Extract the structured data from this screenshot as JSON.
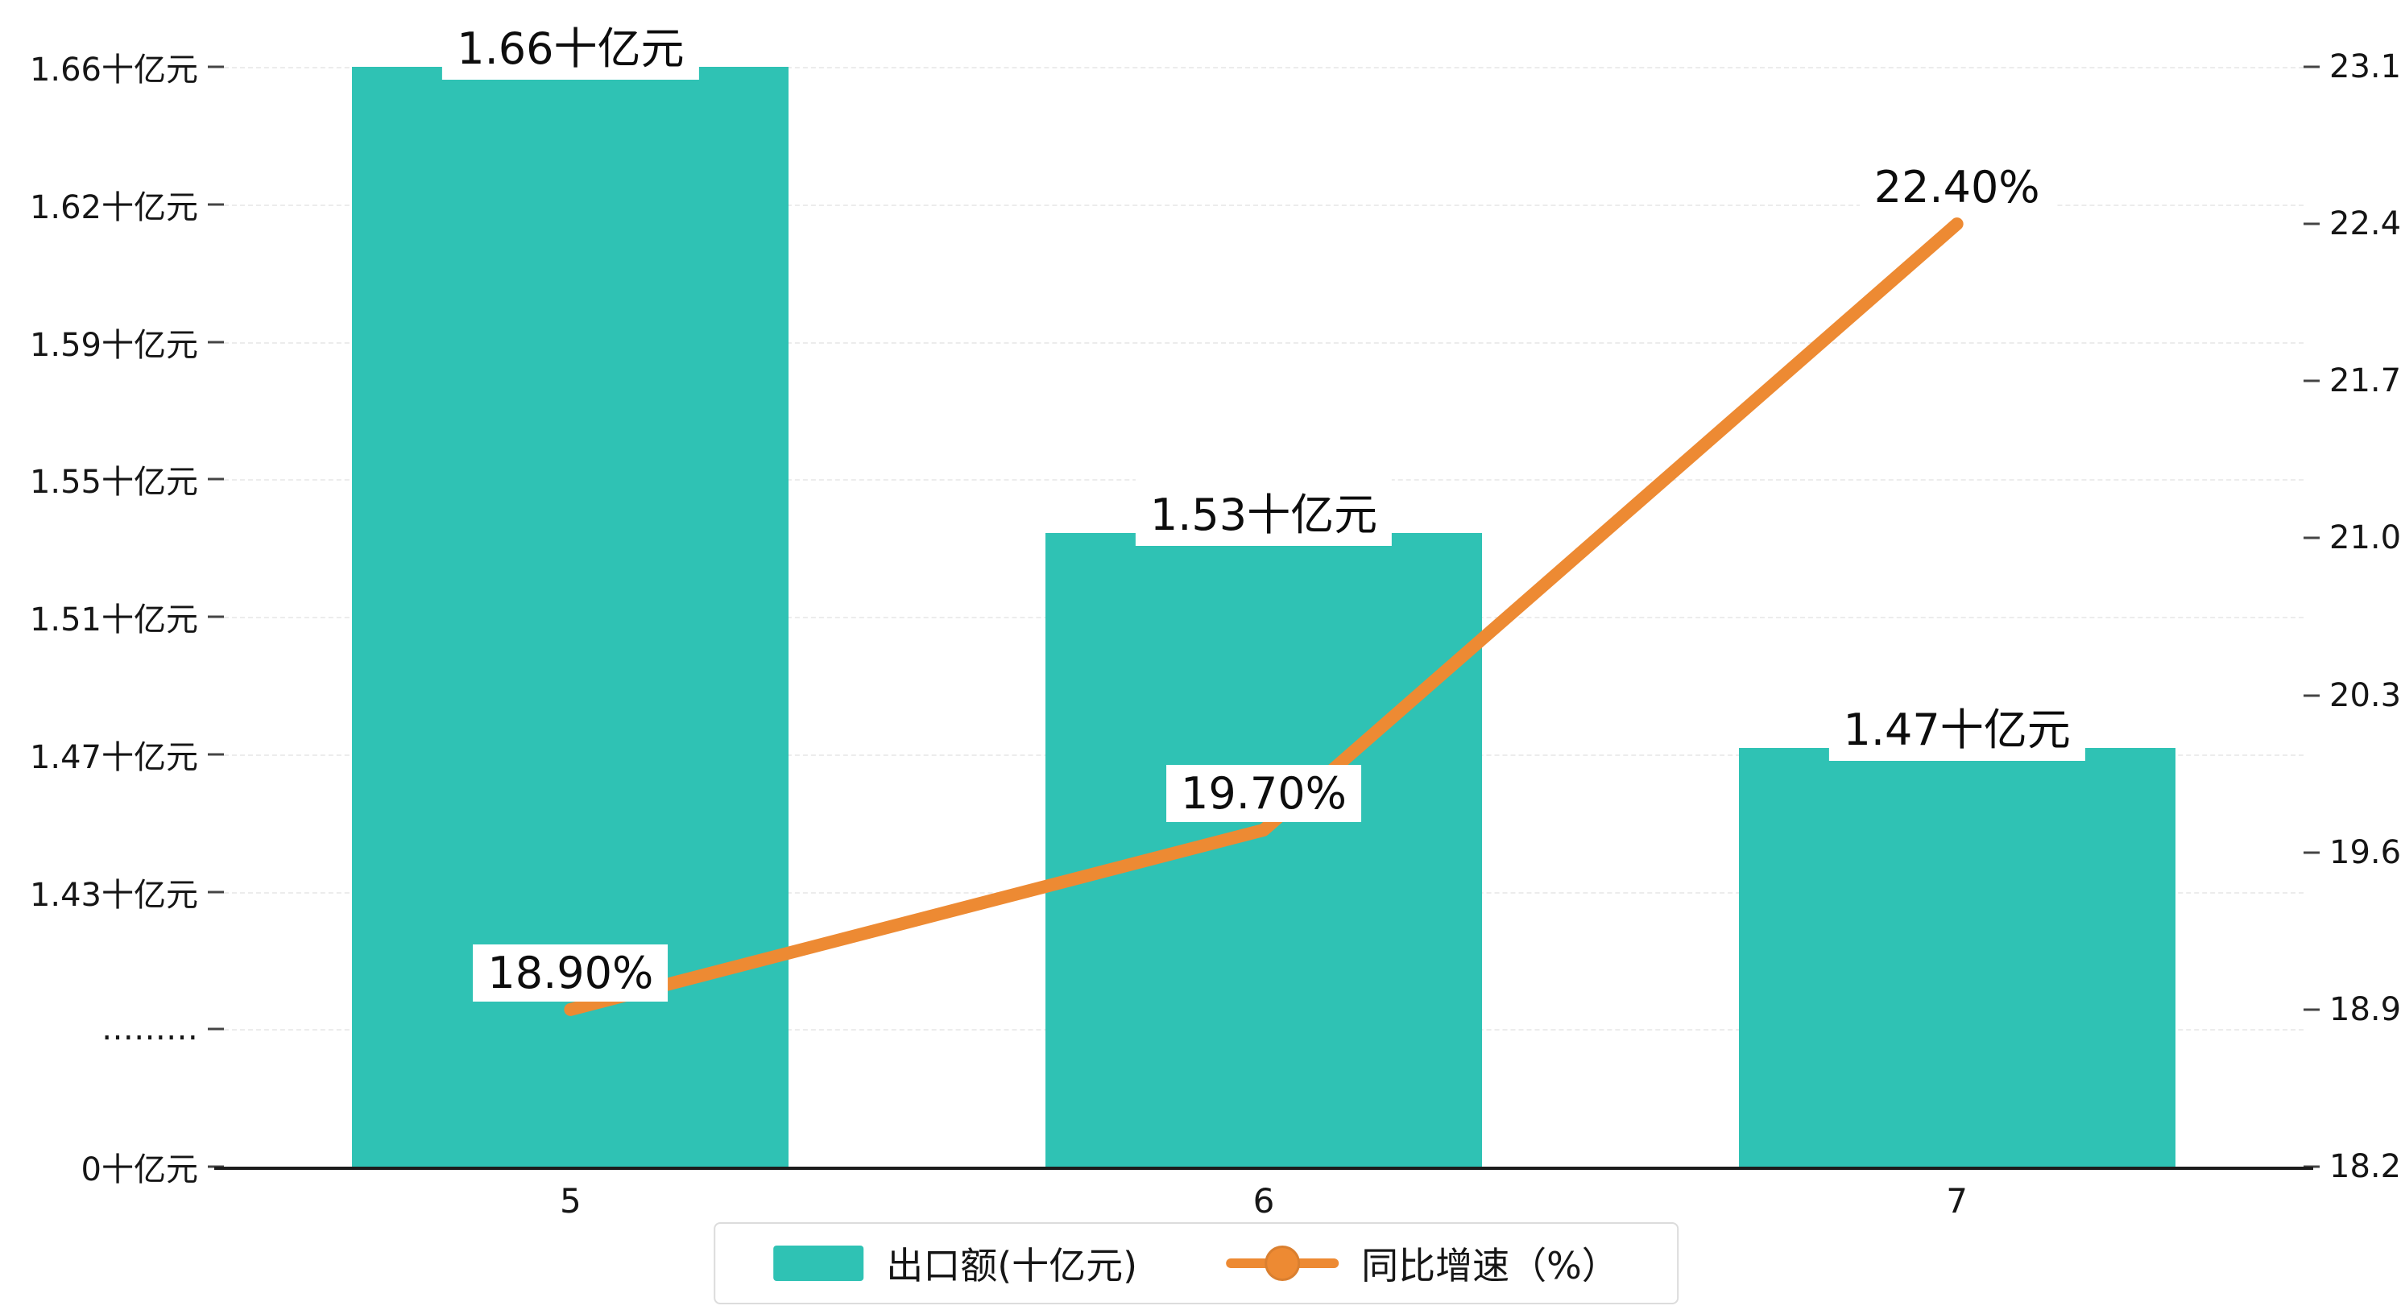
{
  "chart_data": {
    "type": "bar",
    "subtype": "combo-bar-line-dual-axis",
    "categories": [
      "5",
      "6",
      "7"
    ],
    "series": [
      {
        "name": "出口额(十亿元)",
        "kind": "bar",
        "axis": "left",
        "values": [
          1.66,
          1.53,
          1.47
        ],
        "labels": [
          "1.66十亿元",
          "1.53十亿元",
          "1.47十亿元"
        ],
        "color": "#2fc2b4"
      },
      {
        "name": "同比增速（%）",
        "kind": "line",
        "axis": "right",
        "values": [
          18.9,
          19.7,
          22.4
        ],
        "labels": [
          "18.90%",
          "19.70%",
          "22.40%"
        ],
        "color": "#ed8a33"
      }
    ],
    "left_axis": {
      "tick_labels": [
        "1.66十亿元",
        "1.62十亿元",
        "1.59十亿元",
        "1.55十亿元",
        "1.51十亿元",
        "1.47十亿元",
        "1.43十亿元",
        "………",
        "0十亿元"
      ],
      "tick_values": [
        1.66,
        1.62,
        1.59,
        1.55,
        1.51,
        1.47,
        1.43,
        null,
        0
      ],
      "axis_break": true
    },
    "right_axis": {
      "tick_labels": [
        "23.1",
        "22.4",
        "21.7",
        "21.0",
        "20.3",
        "19.6",
        "18.9",
        "18.2"
      ],
      "min": 18.2,
      "max": 23.1
    },
    "legend": [
      {
        "label": "出口额(十亿元)",
        "marker": "rect",
        "color": "#2fc2b4"
      },
      {
        "label": "同比增速（%）",
        "marker": "line-dot",
        "color": "#ed8a33"
      }
    ],
    "grid": "dashed-horizontal",
    "legend_position": "bottom-center",
    "xlabel": "",
    "ylabel": ""
  },
  "colors": {
    "bar": "#2fc2b4",
    "line": "#ed8a33",
    "axis": "#1c1c1c",
    "grid": "#ececec",
    "label_text": "#0d0d0d"
  }
}
